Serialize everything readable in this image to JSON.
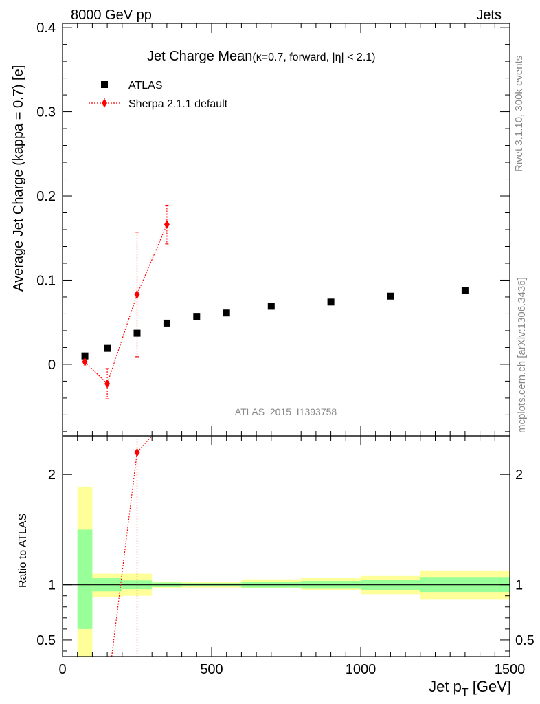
{
  "header": {
    "left": "8000 GeV pp",
    "right": "Jets"
  },
  "side_text": {
    "rivet": "Rivet 3.1.10,  300k events",
    "mcplots": "mcplots.cern.ch [arXiv:1306.3436]"
  },
  "analysis_id": "ATLAS_2015_I1393758",
  "chart_data": [
    {
      "type": "scatter",
      "title": "Jet Charge Mean",
      "subtitle": "(κ=0.7, forward, |η| < 2.1)",
      "xlabel": "",
      "ylabel": "Average Jet Charge (kappa = 0.7) [e]",
      "xlim": [
        0,
        1500
      ],
      "ylim": [
        -0.085,
        0.405
      ],
      "y_ticks": [
        0,
        0.1,
        0.2,
        0.3,
        0.4
      ],
      "y_tick_labels": [
        "0",
        "0.1",
        "0.2",
        "0.3",
        "0.4"
      ],
      "legend_position": "top-left",
      "series": [
        {
          "name": "ATLAS",
          "marker": "square",
          "color": "#000000",
          "x": [
            75,
            150,
            250,
            350,
            450,
            550,
            700,
            900,
            1100,
            1350
          ],
          "y": [
            0.01,
            0.019,
            0.037,
            0.049,
            0.057,
            0.061,
            0.069,
            0.074,
            0.081,
            0.088
          ]
        },
        {
          "name": "Sherpa 2.1.1 default",
          "marker": "diamond",
          "color": "#ff0000",
          "line": "dotted",
          "x": [
            75,
            150,
            250,
            350
          ],
          "y": [
            0.003,
            -0.023,
            0.083,
            0.166
          ],
          "err_low": [
            0.005,
            0.018,
            0.074,
            0.023
          ],
          "err_high": [
            0.005,
            0.018,
            0.074,
            0.023
          ]
        }
      ]
    },
    {
      "type": "line",
      "ylabel": "Ratio to ATLAS",
      "xlabel": "Jet p_T [GeV]",
      "xlim": [
        0,
        1500
      ],
      "ylim": [
        0.35,
        2.35
      ],
      "x_ticks": [
        0,
        500,
        1000,
        1500
      ],
      "x_tick_labels": [
        "0",
        "500",
        "1000",
        "1500"
      ],
      "y_ticks": [
        0.5,
        1,
        2
      ],
      "y_tick_labels": [
        "0.5",
        "1",
        "2"
      ],
      "bin_edges": [
        50,
        100,
        200,
        300,
        400,
        600,
        800,
        1000,
        1200,
        1500
      ],
      "stat_band": {
        "color": "#99ff99",
        "low": [
          0.6,
          0.94,
          0.96,
          0.98,
          0.985,
          0.975,
          0.965,
          0.955,
          0.935
        ],
        "high": [
          1.5,
          1.06,
          1.04,
          1.02,
          1.015,
          1.025,
          1.035,
          1.045,
          1.065
        ]
      },
      "total_band": {
        "color": "#ffff99",
        "low": [
          0.3,
          0.89,
          0.9,
          0.97,
          0.975,
          0.97,
          0.955,
          0.915,
          0.865
        ],
        "high": [
          1.89,
          1.1,
          1.1,
          1.03,
          1.025,
          1.05,
          1.06,
          1.08,
          1.13
        ]
      },
      "reference_line": 1,
      "sherpa_points": {
        "x": [
          250
        ],
        "y": [
          2.2
        ],
        "err_low": [
          2.0
        ],
        "err_high": [
          0.2
        ]
      },
      "sherpa_curve": {
        "x": [
          165,
          250,
          300
        ],
        "y": [
          0.35,
          2.2,
          2.4
        ]
      }
    }
  ]
}
